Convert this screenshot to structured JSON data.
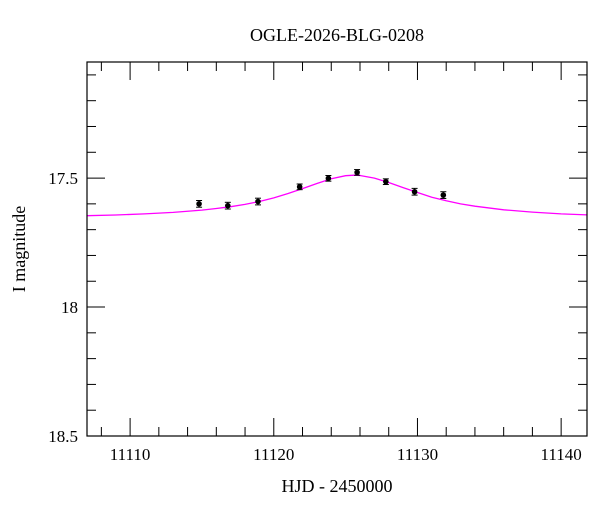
{
  "chart_data": {
    "type": "scatter",
    "title": "OGLE-2026-BLG-0208",
    "xlabel": "HJD - 2450000",
    "ylabel": "I magnitude",
    "xlim": [
      11107.0,
      11141.8
    ],
    "ylim": [
      17.05,
      18.5
    ],
    "y_inverted": true,
    "grid": false,
    "x_ticks": [
      "11110",
      "11120",
      "11130",
      "11140"
    ],
    "x_tick_values": [
      11110,
      11120,
      11130,
      11140
    ],
    "x_minor_step": 2,
    "y_ticks": [
      "17.5",
      "18",
      "18.5"
    ],
    "y_tick_values": [
      17.5,
      18.0,
      18.5
    ],
    "y_minor_step": 0.1,
    "colors": {
      "points": "#000000",
      "model": "#ff00ff",
      "axes": "#000000"
    },
    "series": [
      {
        "kind": "points-with-errorbars",
        "x": [
          11114.8,
          11116.8,
          11118.9,
          11121.8,
          11123.8,
          11125.8,
          11127.8,
          11129.8,
          11131.8
        ],
        "y": [
          17.6,
          17.607,
          17.591,
          17.534,
          17.501,
          17.478,
          17.514,
          17.553,
          17.566
        ],
        "yerr": [
          0.013,
          0.013,
          0.013,
          0.011,
          0.011,
          0.011,
          0.011,
          0.013,
          0.013
        ]
      },
      {
        "kind": "model-curve",
        "x": [
          11107,
          11109,
          11111,
          11113,
          11115,
          11116,
          11117,
          11118,
          11119,
          11120,
          11121,
          11122,
          11123,
          11124,
          11125,
          11125.6,
          11126,
          11127,
          11128,
          11129,
          11130,
          11131,
          11132,
          11133,
          11134,
          11136,
          11138,
          11140,
          11142
        ],
        "y": [
          17.646,
          17.643,
          17.639,
          17.633,
          17.624,
          17.618,
          17.611,
          17.602,
          17.591,
          17.577,
          17.56,
          17.541,
          17.521,
          17.503,
          17.491,
          17.489,
          17.49,
          17.5,
          17.517,
          17.537,
          17.556,
          17.574,
          17.588,
          17.6,
          17.609,
          17.623,
          17.632,
          17.639,
          17.643
        ]
      }
    ]
  }
}
